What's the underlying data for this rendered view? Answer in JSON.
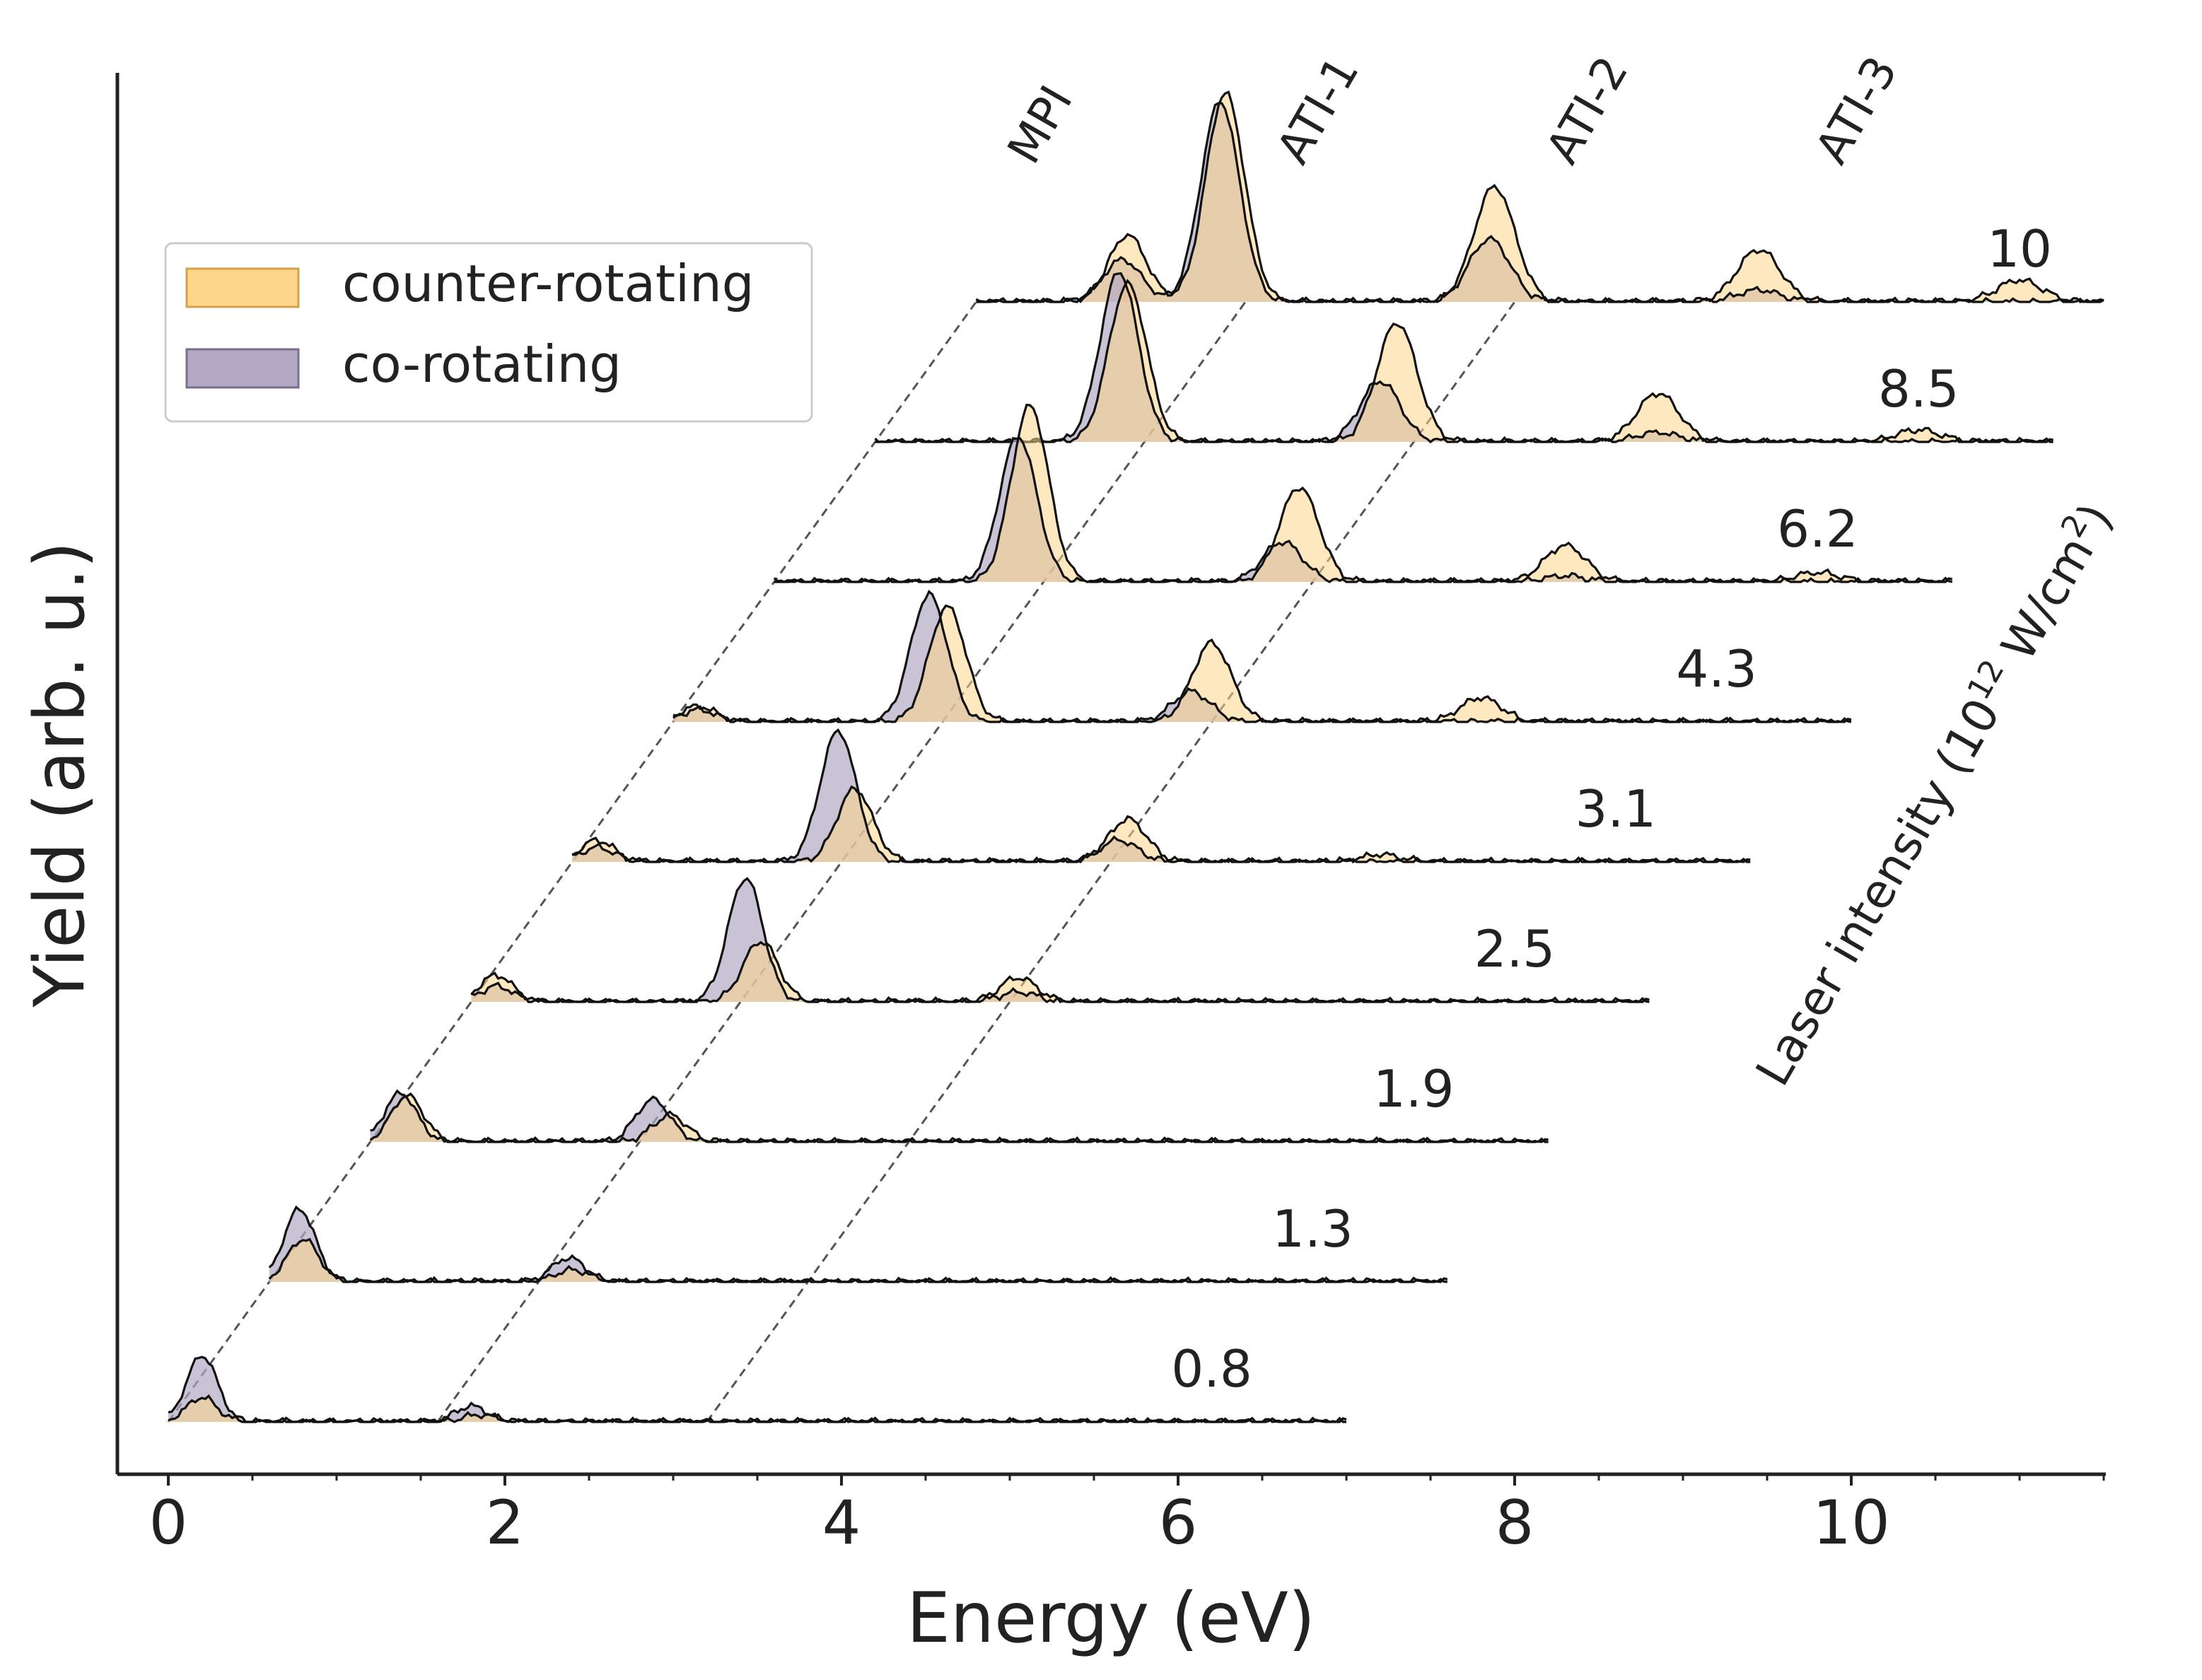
{
  "chart_data": {
    "type": "area",
    "title": "",
    "xlabel": "Energy (eV)",
    "ylabel": "Yield (arb. u.)",
    "xlim": [
      -0.3,
      11.5
    ],
    "x_ticks": [
      0,
      2,
      4,
      6,
      8,
      10
    ],
    "x_tick_labels": [
      "0",
      "2",
      "4",
      "6",
      "8",
      "10"
    ],
    "x_minor_tick_step": 0.5,
    "offset_axis_label_parts": [
      "Laser intensity (10",
      "12",
      " W/cm",
      "2",
      ")"
    ],
    "legend": {
      "placement": "upper-left",
      "entries": [
        {
          "name": "counter-rotating",
          "color": "#fdd68b",
          "edge": "#d4a04a"
        },
        {
          "name": "co-rotating",
          "color": "#b3a9c4",
          "edge": "#7a6d8f"
        }
      ]
    },
    "peak_labels": [
      "MPI",
      "ATI-1",
      "ATI-2",
      "ATI-3"
    ],
    "photon_energy_eV": 1.6,
    "traces": [
      {
        "intensity": "0.8",
        "offset": 0.0,
        "x_range": [
          0.0,
          7.0
        ],
        "co_rotating": {
          "peaks": [
            [
              0.2,
              0.55
            ],
            [
              1.8,
              0.13
            ]
          ]
        },
        "counter_rotating": {
          "peaks": [
            [
              0.2,
              0.2
            ],
            [
              1.85,
              0.06
            ]
          ]
        }
      },
      {
        "intensity": "1.3",
        "offset": 0.6,
        "x_range": [
          0.6,
          7.6
        ],
        "co_rotating": {
          "peaks": [
            [
              0.78,
              0.6
            ],
            [
              2.38,
              0.2
            ]
          ]
        },
        "counter_rotating": {
          "peaks": [
            [
              0.8,
              0.35
            ],
            [
              2.4,
              0.1
            ]
          ]
        }
      },
      {
        "intensity": "1.9",
        "offset": 1.2,
        "x_range": [
          1.2,
          8.2
        ],
        "co_rotating": {
          "peaks": [
            [
              1.38,
              0.4
            ],
            [
              2.88,
              0.35
            ]
          ]
        },
        "counter_rotating": {
          "peaks": [
            [
              1.42,
              0.38
            ],
            [
              2.98,
              0.22
            ]
          ]
        }
      },
      {
        "intensity": "2.5",
        "offset": 1.8,
        "x_range": [
          1.8,
          8.8
        ],
        "co_rotating": {
          "peaks": [
            [
              1.95,
              0.13
            ],
            [
              3.43,
              1.02
            ],
            [
              5.05,
              0.08
            ]
          ]
        },
        "counter_rotating": {
          "peaks": [
            [
              1.95,
              0.22
            ],
            [
              3.52,
              0.5
            ],
            [
              5.05,
              0.2
            ]
          ]
        }
      },
      {
        "intensity": "3.1",
        "offset": 2.4,
        "x_range": [
          2.4,
          9.4
        ],
        "co_rotating": {
          "peaks": [
            [
              2.55,
              0.12
            ],
            [
              3.98,
              1.08
            ],
            [
              5.65,
              0.18
            ]
          ]
        },
        "counter_rotating": {
          "peaks": [
            [
              2.55,
              0.18
            ],
            [
              4.08,
              0.6
            ],
            [
              5.7,
              0.35
            ],
            [
              7.2,
              0.06
            ]
          ]
        }
      },
      {
        "intensity": "4.3",
        "offset": 3.0,
        "x_range": [
          3.0,
          10.0
        ],
        "co_rotating": {
          "peaks": [
            [
              3.15,
              0.1
            ],
            [
              4.52,
              1.05
            ],
            [
              6.08,
              0.25
            ]
          ]
        },
        "counter_rotating": {
          "peaks": [
            [
              3.15,
              0.13
            ],
            [
              4.63,
              0.95
            ],
            [
              6.2,
              0.65
            ],
            [
              7.8,
              0.2
            ]
          ]
        }
      },
      {
        "intensity": "6.2",
        "offset": 3.6,
        "x_range": [
          3.6,
          10.6
        ],
        "co_rotating": {
          "peaks": [
            [
              5.05,
              1.2
            ],
            [
              6.62,
              0.33
            ],
            [
              8.3,
              0.05
            ]
          ]
        },
        "counter_rotating": {
          "peaks": [
            [
              5.12,
              1.45
            ],
            [
              6.72,
              0.78
            ],
            [
              8.3,
              0.3
            ],
            [
              9.8,
              0.08
            ]
          ]
        }
      },
      {
        "intensity": "8.5",
        "offset": 4.2,
        "x_range": [
          4.2,
          11.2
        ],
        "co_rotating": {
          "peaks": [
            [
              5.65,
              1.4
            ],
            [
              7.2,
              0.5
            ],
            [
              8.85,
              0.08
            ]
          ]
        },
        "counter_rotating": {
          "peaks": [
            [
              5.7,
              1.3
            ],
            [
              7.3,
              0.98
            ],
            [
              8.85,
              0.4
            ],
            [
              10.4,
              0.1
            ]
          ]
        }
      },
      {
        "intensity": "10",
        "offset": 4.8,
        "x_range": [
          4.8,
          11.5
        ],
        "co_rotating": {
          "peaks": [
            [
              5.67,
              0.35
            ],
            [
              6.25,
              1.65
            ],
            [
              7.85,
              0.52
            ],
            [
              9.45,
              0.1
            ]
          ]
        },
        "counter_rotating": {
          "peaks": [
            [
              5.7,
              0.55
            ],
            [
              6.28,
              1.72
            ],
            [
              7.88,
              0.95
            ],
            [
              9.45,
              0.43
            ],
            [
              11.0,
              0.18
            ]
          ]
        }
      }
    ]
  }
}
